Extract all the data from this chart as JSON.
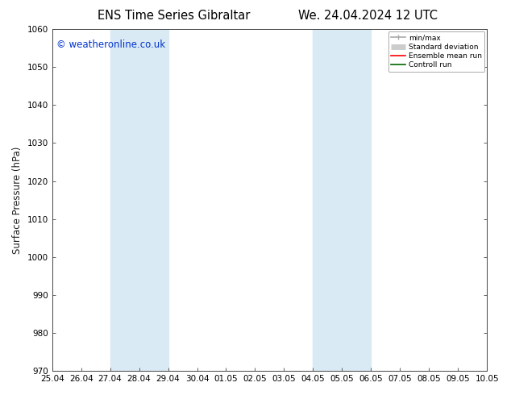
{
  "title_left": "ENS Time Series Gibraltar",
  "title_right": "We. 24.04.2024 12 UTC",
  "ylabel": "Surface Pressure (hPa)",
  "ylim": [
    970,
    1060
  ],
  "yticks": [
    970,
    980,
    990,
    1000,
    1010,
    1020,
    1030,
    1040,
    1050,
    1060
  ],
  "xlim": [
    0,
    15
  ],
  "xtick_labels": [
    "25.04",
    "26.04",
    "27.04",
    "28.04",
    "29.04",
    "30.04",
    "01.05",
    "02.05",
    "03.05",
    "04.05",
    "05.05",
    "06.05",
    "07.05",
    "08.05",
    "09.05",
    "10.05"
  ],
  "xtick_positions": [
    0,
    1,
    2,
    3,
    4,
    5,
    6,
    7,
    8,
    9,
    10,
    11,
    12,
    13,
    14,
    15
  ],
  "shade_bands": [
    {
      "xmin": 2,
      "xmax": 4,
      "color": "#daeaf5"
    },
    {
      "xmin": 9,
      "xmax": 11,
      "color": "#daeaf5"
    }
  ],
  "watermark": "© weatheronline.co.uk",
  "watermark_color": "#0033cc",
  "bg_color": "#ffffff",
  "plot_bg_color": "#ffffff",
  "legend_items": [
    {
      "label": "min/max",
      "color": "#aaaaaa",
      "lw": 1.2
    },
    {
      "label": "Standard deviation",
      "color": "#cccccc",
      "lw": 5
    },
    {
      "label": "Ensemble mean run",
      "color": "#ff0000",
      "lw": 1.2
    },
    {
      "label": "Controll run",
      "color": "#006600",
      "lw": 1.2
    }
  ],
  "title_fontsize": 10.5,
  "axis_label_fontsize": 8.5,
  "tick_fontsize": 7.5,
  "watermark_fontsize": 8.5
}
